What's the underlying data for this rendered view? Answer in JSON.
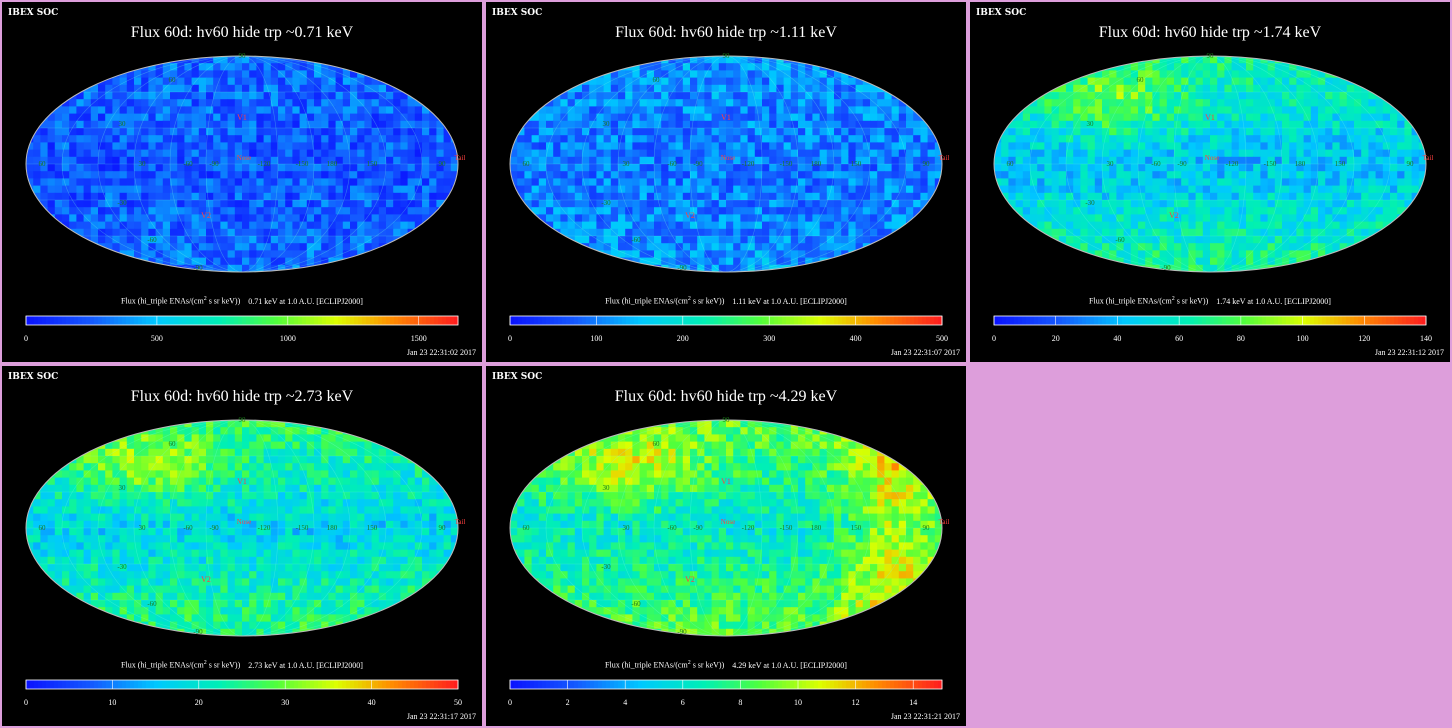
{
  "org_label": "IBEX SOC",
  "colorbar_title_prefix": "Flux (hi_triple ENAs/(cm",
  "colorbar_title_suffix": " s sr keV))",
  "colorbar_sup": "2",
  "map_labels": {
    "v1": "V1",
    "v2": "V2",
    "nose": "Nose",
    "tail": "Tail",
    "lon_ticks": [
      "60",
      "30",
      "-60",
      "-90",
      "-120",
      "-150",
      "180",
      "150",
      "90"
    ],
    "lat_ticks": [
      "60",
      "30",
      "-30",
      "-60",
      "-90",
      "90"
    ]
  },
  "colors": {
    "background": "#dd9edb",
    "panel_bg": "#000000",
    "border": "#dd9edb"
  },
  "panels": [
    {
      "title": "Flux   60d: hv60 hide trp ~0.71 keV",
      "energy_note": "0.71 keV at 1.0 A.U. [ECLIPJ2000]",
      "ticks": [
        "0",
        "500",
        "1000",
        "1500"
      ],
      "tick_values": [
        0,
        500,
        1000,
        1500
      ],
      "max": 1650,
      "timestamp": "Jan 23 22:31:02 2017",
      "level": 0.12
    },
    {
      "title": "Flux   60d: hv60 hide trp ~1.11 keV",
      "energy_note": "1.11 keV at 1.0 A.U. [ECLIPJ2000]",
      "ticks": [
        "0",
        "100",
        "200",
        "300",
        "400",
        "500"
      ],
      "tick_values": [
        0,
        100,
        200,
        300,
        400,
        500
      ],
      "max": 500,
      "timestamp": "Jan 23 22:31:07 2017",
      "level": 0.18
    },
    {
      "title": "Flux   60d: hv60 hide trp ~1.74 keV",
      "energy_note": "1.74 keV at 1.0 A.U. [ECLIPJ2000]",
      "ticks": [
        "0",
        "20",
        "40",
        "60",
        "80",
        "100",
        "120",
        "140"
      ],
      "tick_values": [
        0,
        20,
        40,
        60,
        80,
        100,
        120,
        140
      ],
      "max": 140,
      "timestamp": "Jan 23 22:31:12 2017",
      "level": 0.3
    },
    {
      "title": "Flux   60d: hv60 hide trp ~2.73 keV",
      "energy_note": "2.73 keV at 1.0 A.U. [ECLIPJ2000]",
      "ticks": [
        "0",
        "10",
        "20",
        "30",
        "40",
        "50"
      ],
      "tick_values": [
        0,
        10,
        20,
        30,
        40,
        50
      ],
      "max": 50,
      "timestamp": "Jan 23 22:31:17 2017",
      "level": 0.34
    },
    {
      "title": "Flux   60d: hv60 hide trp ~4.29 keV",
      "energy_note": "4.29 keV at 1.0 A.U. [ECLIPJ2000]",
      "ticks": [
        "0",
        "2",
        "4",
        "6",
        "8",
        "10",
        "12",
        "14"
      ],
      "tick_values": [
        0,
        2,
        4,
        6,
        8,
        10,
        12,
        14
      ],
      "max": 15,
      "timestamp": "Jan 23 22:31:21 2017",
      "level": 0.4
    }
  ]
}
